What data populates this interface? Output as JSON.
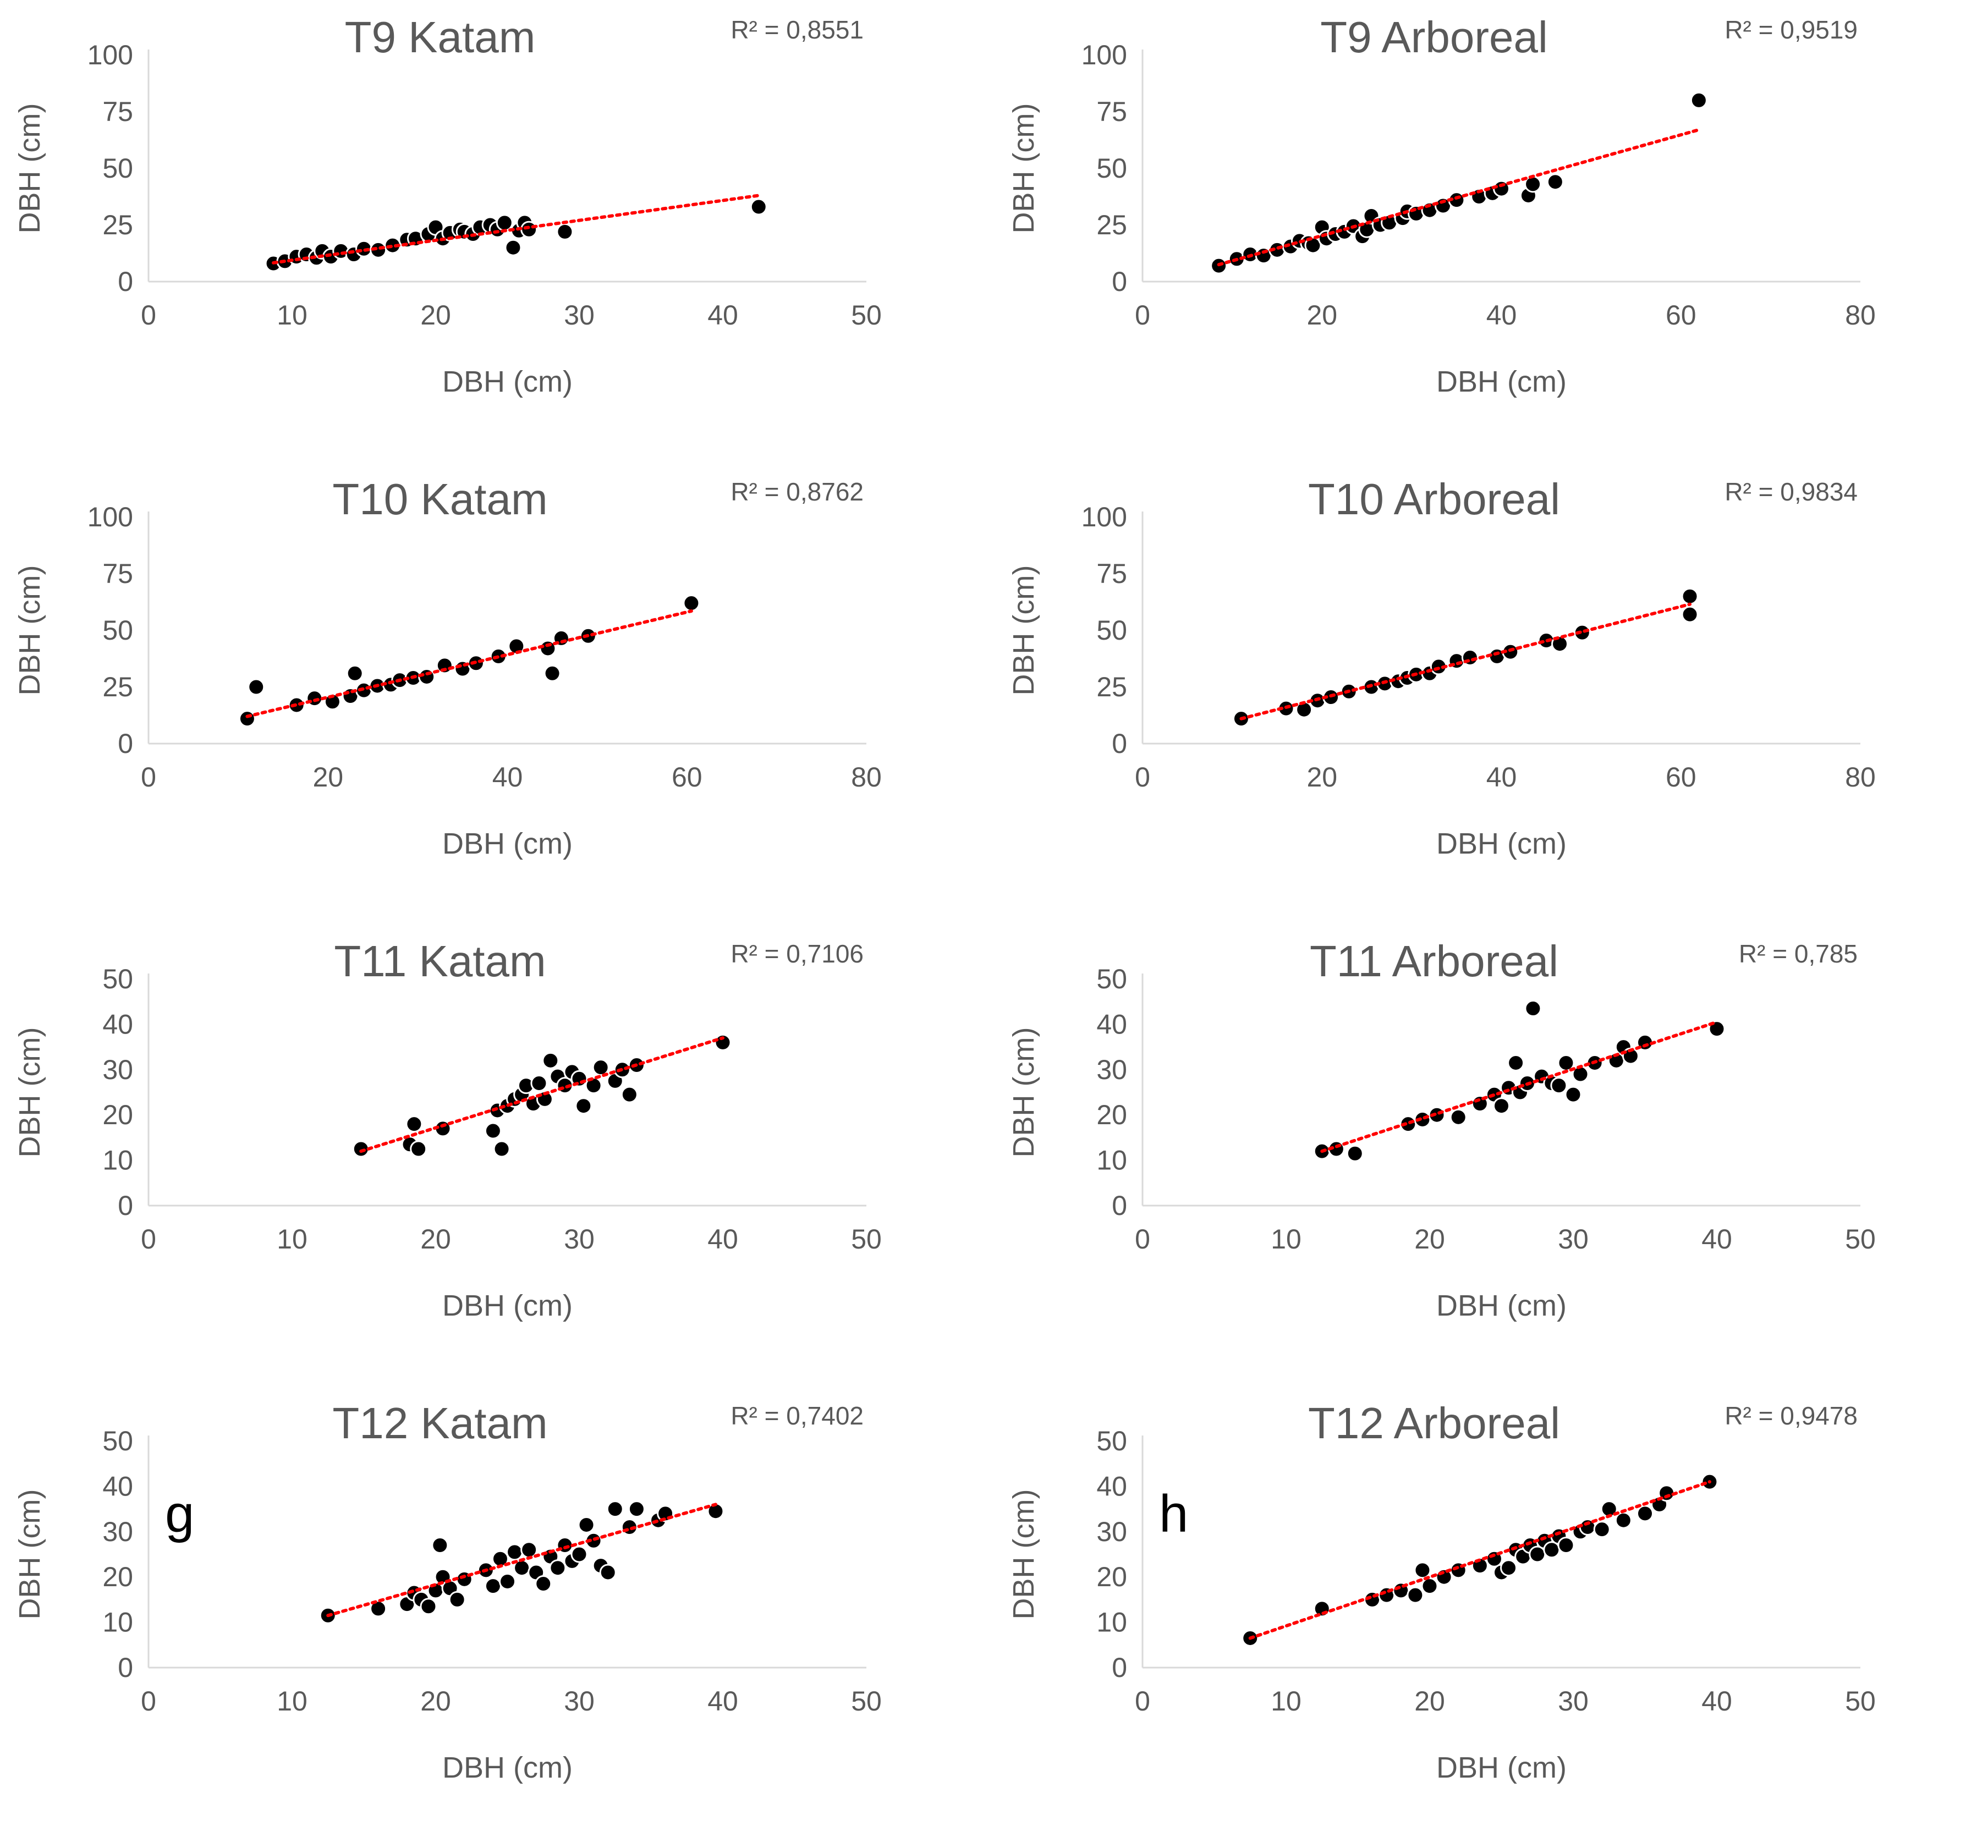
{
  "chart_data": [
    {
      "type": "scatter",
      "panel": "",
      "title": "T9 Katam",
      "r2": "R² = 0,8551",
      "xlabel": "DBH (cm)",
      "ylabel": "DBH (cm)",
      "xlim": [
        0,
        50
      ],
      "ylim": [
        0,
        100
      ],
      "xticks": [
        0,
        10,
        20,
        30,
        40,
        50
      ],
      "yticks": [
        0,
        25,
        50,
        75,
        100
      ],
      "trendline": {
        "x0": 8.7,
        "y0": 8.3,
        "x1": 42.5,
        "y1": 38.0,
        "color": "#ff0000"
      },
      "x": [
        8.7,
        9.5,
        10.3,
        11.0,
        11.7,
        12.1,
        12.7,
        13.4,
        14.3,
        15.0,
        16.0,
        17.0,
        18.0,
        18.6,
        19.5,
        20.0,
        20.5,
        21.0,
        21.7,
        22.0,
        22.6,
        23.1,
        23.8,
        24.3,
        24.8,
        25.4,
        25.8,
        26.2,
        26.5,
        29.0,
        42.5
      ],
      "y": [
        8.0,
        9.0,
        11.0,
        12.0,
        10.5,
        13.5,
        11.0,
        13.5,
        12.0,
        14.5,
        14.0,
        16.0,
        18.5,
        19.0,
        21.0,
        24.0,
        19.0,
        21.5,
        23.0,
        22.0,
        21.0,
        24.0,
        25.0,
        23.0,
        26.0,
        15.0,
        22.5,
        26.0,
        23.0,
        22.0,
        33.0
      ]
    },
    {
      "type": "scatter",
      "panel": "",
      "title": "T9 Arboreal",
      "r2": "R² = 0,9519",
      "xlabel": "DBH (cm)",
      "ylabel": "DBH (cm)",
      "xlim": [
        0,
        80
      ],
      "ylim": [
        0,
        100
      ],
      "xticks": [
        0,
        20,
        40,
        60,
        80
      ],
      "yticks": [
        0,
        25,
        50,
        75,
        100
      ],
      "trendline": {
        "x0": 8.5,
        "y0": 7.5,
        "x1": 62.0,
        "y1": 67.0,
        "color": "#ff0000"
      },
      "x": [
        8.5,
        10.5,
        12.0,
        13.5,
        15.0,
        16.5,
        17.5,
        18.5,
        19.0,
        20.0,
        20.5,
        21.5,
        22.5,
        23.5,
        24.5,
        25.0,
        25.5,
        26.5,
        27.5,
        29.0,
        29.5,
        30.5,
        32.0,
        33.5,
        35.0,
        37.5,
        39.0,
        40.0,
        43.0,
        43.5,
        46.0,
        62.0
      ],
      "y": [
        7.0,
        10.0,
        12.0,
        11.5,
        14.0,
        15.5,
        18.0,
        17.0,
        16.0,
        24.0,
        19.0,
        21.0,
        22.0,
        24.5,
        20.0,
        23.0,
        29.0,
        25.0,
        26.0,
        28.0,
        31.0,
        30.0,
        31.5,
        33.5,
        36.0,
        37.5,
        39.0,
        41.0,
        38.0,
        43.0,
        44.0,
        80.0
      ]
    },
    {
      "type": "scatter",
      "panel": "",
      "title": "T10 Katam",
      "r2": "R² = 0,8762",
      "xlabel": "DBH (cm)",
      "ylabel": "DBH (cm)",
      "xlim": [
        0,
        80
      ],
      "ylim": [
        0,
        100
      ],
      "xticks": [
        0,
        20,
        40,
        60,
        80
      ],
      "yticks": [
        0,
        25,
        50,
        75,
        100
      ],
      "trendline": {
        "x0": 11.0,
        "y0": 12.0,
        "x1": 60.5,
        "y1": 58.5,
        "color": "#ff0000"
      },
      "x": [
        11.0,
        12.0,
        16.5,
        18.5,
        20.5,
        22.5,
        23.0,
        24.0,
        25.5,
        27.0,
        28.0,
        29.5,
        31.0,
        33.0,
        35.0,
        36.5,
        39.0,
        41.0,
        44.5,
        45.0,
        46.0,
        49.0,
        60.5
      ],
      "y": [
        11.0,
        25.0,
        17.0,
        20.0,
        18.5,
        21.0,
        31.0,
        23.5,
        25.5,
        26.0,
        28.0,
        29.0,
        29.5,
        34.5,
        33.0,
        35.5,
        38.5,
        43.0,
        42.0,
        31.0,
        46.5,
        47.5,
        62.0
      ]
    },
    {
      "type": "scatter",
      "panel": "",
      "title": "T10 Arboreal",
      "r2": "R² = 0,9834",
      "xlabel": "DBH (cm)",
      "ylabel": "DBH (cm)",
      "xlim": [
        0,
        80
      ],
      "ylim": [
        0,
        100
      ],
      "xticks": [
        0,
        20,
        40,
        60,
        80
      ],
      "yticks": [
        0,
        25,
        50,
        75,
        100
      ],
      "trendline": {
        "x0": 11.0,
        "y0": 11.0,
        "x1": 61.0,
        "y1": 61.5,
        "color": "#ff0000"
      },
      "x": [
        11.0,
        16.0,
        18.0,
        19.5,
        21.0,
        23.0,
        25.5,
        27.0,
        28.5,
        29.5,
        30.5,
        32.0,
        33.0,
        35.0,
        36.5,
        39.5,
        41.0,
        45.0,
        46.5,
        49.0,
        61.0,
        61.0
      ],
      "y": [
        11.0,
        15.5,
        15.0,
        19.0,
        20.5,
        23.0,
        25.0,
        26.5,
        27.5,
        29.0,
        30.5,
        31.0,
        34.0,
        36.5,
        38.0,
        38.5,
        40.5,
        45.5,
        44.0,
        49.0,
        57.0,
        65.0
      ]
    },
    {
      "type": "scatter",
      "panel": "",
      "title": "T11 Katam",
      "r2": "R² = 0,7106",
      "xlabel": "DBH (cm)",
      "ylabel": "DBH (cm)",
      "xlim": [
        0,
        50
      ],
      "ylim": [
        0,
        50
      ],
      "xticks": [
        0,
        10,
        20,
        30,
        40,
        50
      ],
      "yticks": [
        0,
        10,
        20,
        30,
        40,
        50
      ],
      "trendline": {
        "x0": 14.8,
        "y0": 12.0,
        "x1": 40.0,
        "y1": 37.0,
        "color": "#ff0000"
      },
      "x": [
        14.8,
        18.2,
        18.5,
        18.8,
        20.5,
        24.0,
        24.3,
        24.6,
        25.0,
        25.5,
        26.0,
        26.3,
        26.8,
        27.2,
        27.6,
        28.0,
        28.5,
        29.0,
        29.5,
        30.0,
        30.3,
        31.0,
        31.5,
        32.5,
        33.0,
        33.5,
        34.0,
        40.0
      ],
      "y": [
        12.5,
        13.5,
        18.0,
        12.5,
        17.0,
        16.5,
        21.0,
        12.5,
        22.0,
        23.5,
        24.5,
        26.5,
        22.5,
        27.0,
        23.5,
        32.0,
        28.5,
        26.5,
        29.5,
        28.0,
        22.0,
        26.5,
        30.5,
        27.5,
        30.0,
        24.5,
        31.0,
        36.0
      ]
    },
    {
      "type": "scatter",
      "panel": "",
      "title": "T11 Arboreal",
      "r2": "R² = 0,785",
      "xlabel": "DBH (cm)",
      "ylabel": "DBH (cm)",
      "xlim": [
        0,
        50
      ],
      "ylim": [
        0,
        50
      ],
      "xticks": [
        0,
        10,
        20,
        30,
        40,
        50
      ],
      "yticks": [
        0,
        10,
        20,
        30,
        40,
        50
      ],
      "trendline": {
        "x0": 12.5,
        "y0": 12.0,
        "x1": 40.0,
        "y1": 40.5,
        "color": "#ff0000"
      },
      "x": [
        12.5,
        13.5,
        14.8,
        18.5,
        19.5,
        20.5,
        22.0,
        23.5,
        24.5,
        25.0,
        25.5,
        26.0,
        26.3,
        26.8,
        27.2,
        27.8,
        28.5,
        29.0,
        29.5,
        30.0,
        30.5,
        31.5,
        33.0,
        33.5,
        34.0,
        35.0,
        40.0
      ],
      "y": [
        12.0,
        12.5,
        11.5,
        18.0,
        19.0,
        20.0,
        19.5,
        22.5,
        24.5,
        22.0,
        26.0,
        31.5,
        25.0,
        27.0,
        43.5,
        28.5,
        27.0,
        26.5,
        31.5,
        24.5,
        29.0,
        31.5,
        32.0,
        35.0,
        33.0,
        36.0,
        39.0
      ]
    },
    {
      "type": "scatter",
      "panel": "g",
      "title": "T12 Katam",
      "r2": "R² = 0,7402",
      "xlabel": "DBH (cm)",
      "ylabel": "DBH (cm)",
      "xlim": [
        0,
        50
      ],
      "ylim": [
        0,
        50
      ],
      "xticks": [
        0,
        10,
        20,
        30,
        40,
        50
      ],
      "yticks": [
        0,
        10,
        20,
        30,
        40,
        50
      ],
      "trendline": {
        "x0": 12.5,
        "y0": 11.5,
        "x1": 39.5,
        "y1": 36.0,
        "color": "#ff0000"
      },
      "x": [
        12.5,
        16.0,
        18.0,
        18.5,
        19.0,
        19.5,
        20.0,
        20.3,
        20.5,
        21.0,
        21.5,
        22.0,
        23.5,
        24.0,
        24.5,
        25.0,
        25.5,
        26.0,
        26.5,
        27.0,
        27.5,
        28.0,
        28.5,
        29.0,
        29.5,
        30.0,
        30.5,
        31.0,
        31.5,
        32.0,
        32.5,
        33.5,
        34.0,
        35.5,
        36.0,
        39.5
      ],
      "y": [
        11.5,
        13.0,
        14.0,
        16.5,
        15.0,
        13.5,
        17.0,
        27.0,
        20.0,
        17.5,
        15.0,
        19.5,
        21.5,
        18.0,
        24.0,
        19.0,
        25.5,
        22.0,
        26.0,
        21.0,
        18.5,
        24.5,
        22.0,
        27.0,
        23.5,
        25.0,
        31.5,
        28.0,
        22.5,
        21.0,
        35.0,
        31.0,
        35.0,
        32.5,
        34.0,
        34.5
      ]
    },
    {
      "type": "scatter",
      "panel": "h",
      "title": "T12 Arboreal",
      "r2": "R² = 0,9478",
      "xlabel": "DBH (cm)",
      "ylabel": "DBH (cm)",
      "xlim": [
        0,
        50
      ],
      "ylim": [
        0,
        50
      ],
      "xticks": [
        0,
        10,
        20,
        30,
        40,
        50
      ],
      "yticks": [
        0,
        10,
        20,
        30,
        40,
        50
      ],
      "trendline": {
        "x0": 7.5,
        "y0": 6.5,
        "x1": 39.5,
        "y1": 41.0,
        "color": "#ff0000"
      },
      "x": [
        7.5,
        12.5,
        16.0,
        17.0,
        18.0,
        19.0,
        19.5,
        20.0,
        21.0,
        22.0,
        23.5,
        24.5,
        25.0,
        25.5,
        26.0,
        26.5,
        27.0,
        27.5,
        28.0,
        28.5,
        29.0,
        29.5,
        30.5,
        31.0,
        32.0,
        32.5,
        33.5,
        35.0,
        36.0,
        36.5,
        39.5
      ],
      "y": [
        6.5,
        13.0,
        15.0,
        16.0,
        17.0,
        16.0,
        21.5,
        18.0,
        20.0,
        21.5,
        22.5,
        24.0,
        21.0,
        22.0,
        26.0,
        24.5,
        27.0,
        25.0,
        28.0,
        26.0,
        29.0,
        27.0,
        30.0,
        31.0,
        30.5,
        35.0,
        32.5,
        34.0,
        36.0,
        38.5,
        41.0
      ]
    }
  ]
}
